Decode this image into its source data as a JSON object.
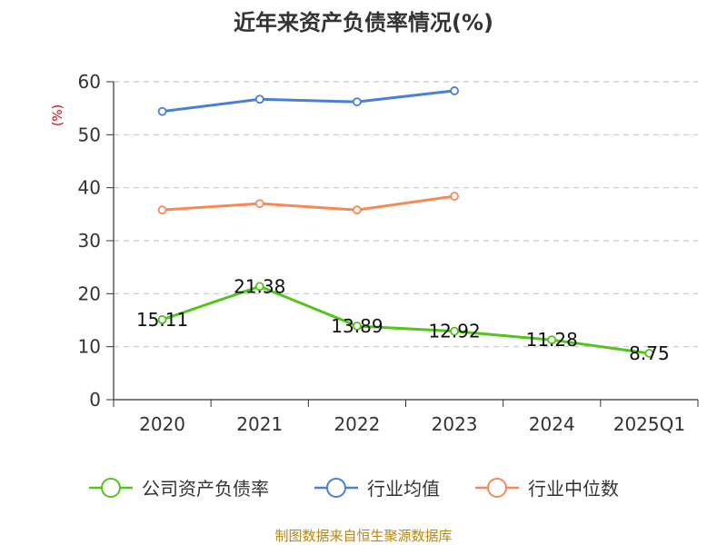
{
  "chart_data": {
    "type": "line",
    "title": "近年来资产负债率情况(%)",
    "ylabel": "(%)",
    "categories": [
      "2020",
      "2021",
      "2022",
      "2023",
      "2024",
      "2025Q1"
    ],
    "ylim": [
      0,
      60
    ],
    "yticks": [
      0,
      10,
      20,
      30,
      40,
      50,
      60
    ],
    "grid": true,
    "legend_position": "bottom",
    "series": [
      {
        "name": "公司资产负债率",
        "color": "#52c41a",
        "values": [
          15.11,
          21.38,
          13.89,
          12.92,
          11.28,
          8.75
        ],
        "labels": [
          "15.11",
          "21.38",
          "13.89",
          "12.92",
          "11.28",
          "8.75"
        ]
      },
      {
        "name": "行业均值",
        "color": "#4a7fd8",
        "values": [
          54.4,
          56.7,
          56.2,
          58.3,
          null,
          null
        ]
      },
      {
        "name": "行业中位数",
        "color": "#f5895a",
        "values": [
          35.8,
          37.0,
          35.8,
          38.4,
          null,
          null
        ]
      }
    ]
  },
  "source": "制图数据来自恒生聚源数据库"
}
